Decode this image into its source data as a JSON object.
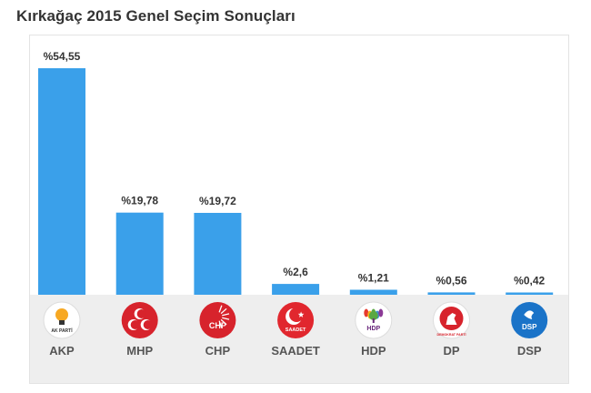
{
  "title": "Kırkağaç 2015 Genel Seçim Sonuçları",
  "chart_data": {
    "type": "bar",
    "title": "Kırkağaç 2015 Genel Seçim Sonuçları",
    "categories": [
      "AKP",
      "MHP",
      "CHP",
      "SAADET",
      "HDP",
      "DP",
      "DSP"
    ],
    "values": [
      54.55,
      19.78,
      19.72,
      2.6,
      1.21,
      0.56,
      0.42
    ],
    "value_labels": [
      "%54,55",
      "%19,78",
      "%19,72",
      "%2,6",
      "%1,21",
      "%0,56",
      "%0,42"
    ],
    "ylim": [
      0,
      54.55
    ],
    "grid": false,
    "legend": "none",
    "bar_color": "#3aa0ea",
    "parties": [
      {
        "name": "AKP",
        "icon": "akp-bulb-logo-icon",
        "logo_text": "AK PARTİ",
        "color": "#f7a823"
      },
      {
        "name": "MHP",
        "icon": "mhp-crescents-logo-icon",
        "logo_text": "",
        "color": "#d7232c"
      },
      {
        "name": "CHP",
        "icon": "chp-arrows-logo-icon",
        "logo_text": "CHP",
        "color": "#d7232c"
      },
      {
        "name": "SAADET",
        "icon": "saadet-crescent-star-logo-icon",
        "logo_text": "SAADET",
        "color": "#e1272e"
      },
      {
        "name": "HDP",
        "icon": "hdp-tree-logo-icon",
        "logo_text": "HDP",
        "color": "#6b2a7d"
      },
      {
        "name": "DP",
        "icon": "dp-horse-logo-icon",
        "logo_text": "DEMOKRAT PARTİ",
        "color": "#d7232c"
      },
      {
        "name": "DSP",
        "icon": "dsp-dove-logo-icon",
        "logo_text": "DSP",
        "color": "#1a73c8"
      }
    ]
  }
}
